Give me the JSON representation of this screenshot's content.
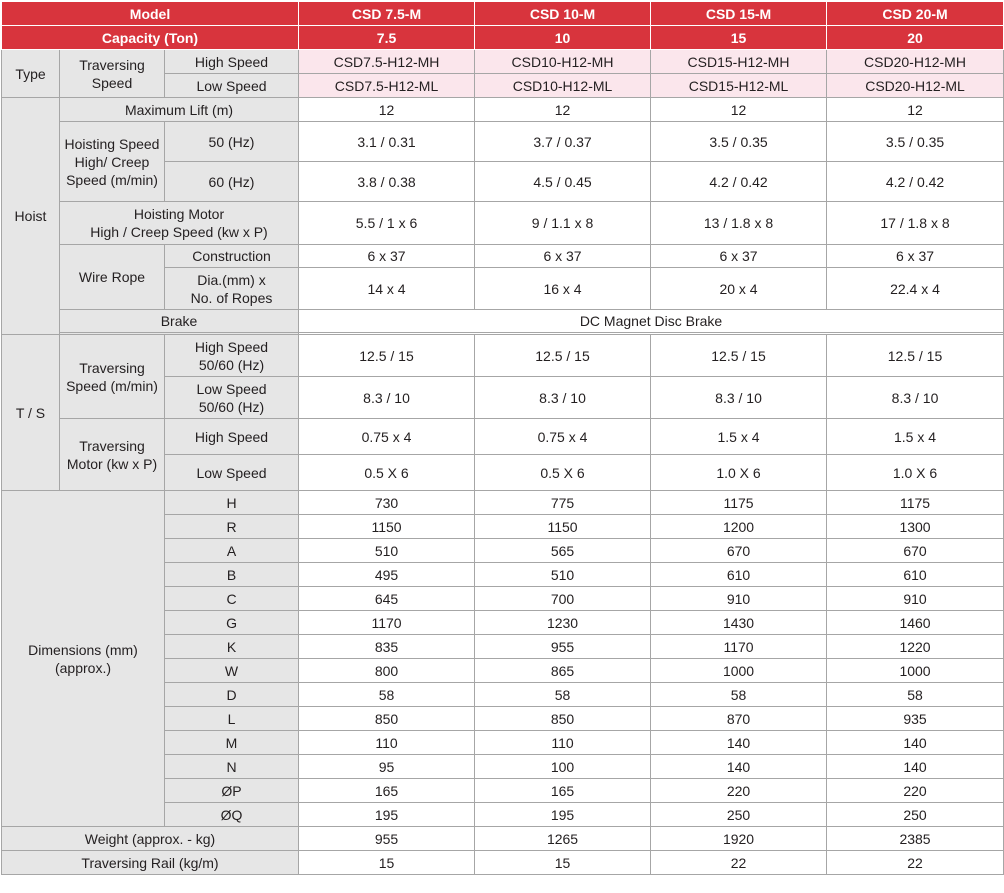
{
  "header": {
    "model_label": "Model",
    "capacity_label": "Capacity (Ton)",
    "models": [
      "CSD 7.5-M",
      "CSD 10-M",
      "CSD 15-M",
      "CSD 20-M"
    ],
    "capacities": [
      "7.5",
      "10",
      "15",
      "20"
    ]
  },
  "type": {
    "group_label": "Type",
    "traversing_speed_label": "Traversing Speed",
    "high_speed_label": "High Speed",
    "low_speed_label": "Low Speed",
    "high_values": [
      "CSD7.5-H12-MH",
      "CSD10-H12-MH",
      "CSD15-H12-MH",
      "CSD20-H12-MH"
    ],
    "low_values": [
      "CSD7.5-H12-ML",
      "CSD10-H12-ML",
      "CSD15-H12-ML",
      "CSD20-H12-ML"
    ]
  },
  "hoist": {
    "group_label": "Hoist",
    "max_lift_label": "Maximum Lift (m)",
    "max_lift_values": [
      "12",
      "12",
      "12",
      "12"
    ],
    "hoisting_speed_label": "Hoisting Speed High/ Creep Speed (m/min)",
    "hz50_label": "50 (Hz)",
    "hz50_values": [
      "3.1 / 0.31",
      "3.7 / 0.37",
      "3.5 / 0.35",
      "3.5 / 0.35"
    ],
    "hz60_label": "60 (Hz)",
    "hz60_values": [
      "3.8 / 0.38",
      "4.5 / 0.45",
      "4.2 / 0.42",
      "4.2 / 0.42"
    ],
    "motor_label_line1": "Hoisting Motor",
    "motor_label_line2": "High / Creep Speed (kw x P)",
    "motor_values": [
      "5.5 / 1 x 6",
      "9 / 1.1 x 8",
      "13 / 1.8 x 8",
      "17 / 1.8 x 8"
    ],
    "wire_rope_label": "Wire Rope",
    "construction_label": "Construction",
    "construction_values": [
      "6 x 37",
      "6 x 37",
      "6 x 37",
      "6 x 37"
    ],
    "dia_label_line1": "Dia.(mm) x",
    "dia_label_line2": "No. of Ropes",
    "dia_values": [
      "14 x 4",
      "16 x 4",
      "20 x 4",
      "22.4 x 4"
    ],
    "brake_label": "Brake",
    "brake_value": "DC Magnet Disc Brake"
  },
  "ts": {
    "group_label": "T / S",
    "speed_label": "Traversing Speed (m/min)",
    "high_speed_label_line1": "High Speed",
    "high_speed_label_line2": "50/60 (Hz)",
    "high_speed_values": [
      "12.5 / 15",
      "12.5 / 15",
      "12.5 / 15",
      "12.5 / 15"
    ],
    "low_speed_label_line1": "Low Speed",
    "low_speed_label_line2": "50/60 (Hz)",
    "low_speed_values": [
      "8.3 / 10",
      "8.3 / 10",
      "8.3 / 10",
      "8.3 / 10"
    ],
    "motor_label": "Traversing Motor (kw x P)",
    "motor_high_label": "High Speed",
    "motor_high_values": [
      "0.75 x 4",
      "0.75 x 4",
      "1.5 x 4",
      "1.5 x 4"
    ],
    "motor_low_label": "Low Speed",
    "motor_low_values": [
      "0.5 X 6",
      "0.5 X 6",
      "1.0 X 6",
      "1.0 X 6"
    ]
  },
  "dimensions": {
    "group_label_line1": "Dimensions (mm)",
    "group_label_line2": "(approx.)",
    "rows": [
      {
        "label": "H",
        "values": [
          "730",
          "775",
          "1175",
          "1175"
        ]
      },
      {
        "label": "R",
        "values": [
          "1150",
          "1150",
          "1200",
          "1300"
        ]
      },
      {
        "label": "A",
        "values": [
          "510",
          "565",
          "670",
          "670"
        ]
      },
      {
        "label": "B",
        "values": [
          "495",
          "510",
          "610",
          "610"
        ]
      },
      {
        "label": "C",
        "values": [
          "645",
          "700",
          "910",
          "910"
        ]
      },
      {
        "label": "G",
        "values": [
          "1170",
          "1230",
          "1430",
          "1460"
        ]
      },
      {
        "label": "K",
        "values": [
          "835",
          "955",
          "1170",
          "1220"
        ]
      },
      {
        "label": "W",
        "values": [
          "800",
          "865",
          "1000",
          "1000"
        ]
      },
      {
        "label": "D",
        "values": [
          "58",
          "58",
          "58",
          "58"
        ]
      },
      {
        "label": "L",
        "values": [
          "850",
          "850",
          "870",
          "935"
        ]
      },
      {
        "label": "M",
        "values": [
          "110",
          "110",
          "140",
          "140"
        ]
      },
      {
        "label": "N",
        "values": [
          "95",
          "100",
          "140",
          "140"
        ]
      },
      {
        "label": "ØP",
        "values": [
          "165",
          "165",
          "220",
          "220"
        ]
      },
      {
        "label": "ØQ",
        "values": [
          "195",
          "195",
          "250",
          "250"
        ]
      }
    ]
  },
  "footer": {
    "weight_label": "Weight (approx. - kg)",
    "weight_values": [
      "955",
      "1265",
      "1920",
      "2385"
    ],
    "rail_label": "Traversing Rail (kg/m)",
    "rail_values": [
      "15",
      "15",
      "22",
      "22"
    ]
  },
  "colors": {
    "header_red": "#d8343d",
    "label_gray": "#e6e6e6",
    "type_pink": "#fbe6ec",
    "border_gray": "#a6a6a6"
  }
}
